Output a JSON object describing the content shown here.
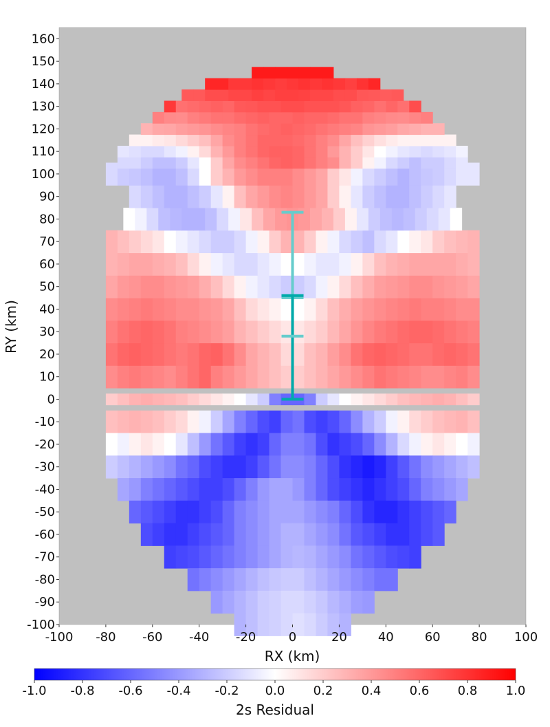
{
  "chart_data": {
    "type": "heatmap",
    "xlabel": "RX (km)",
    "ylabel": "RY (km)",
    "xlim": [
      -100,
      100
    ],
    "ylim": [
      -100,
      165
    ],
    "x_ticks": [
      -100,
      -80,
      -60,
      -40,
      -20,
      0,
      20,
      40,
      60,
      80,
      100
    ],
    "y_ticks": [
      -100,
      -90,
      -80,
      -70,
      -60,
      -50,
      -40,
      -30,
      -20,
      -10,
      0,
      10,
      20,
      30,
      40,
      50,
      60,
      70,
      80,
      90,
      100,
      110,
      120,
      130,
      140,
      150,
      160
    ],
    "cell_size_km": 5,
    "background_color": "#c0c0c0",
    "colorbar": {
      "label": "2s Residual",
      "range": [
        -1.0,
        1.0
      ],
      "ticks": [
        "-1.0",
        "-0.8",
        "-0.6",
        "-0.4",
        "-0.2",
        "0.0",
        "0.2",
        "0.4",
        "0.6",
        "0.8",
        "1.0"
      ],
      "low_color": "#0000ff",
      "mid_color": "#ffffff",
      "high_color": "#ff0000"
    },
    "value_rows": {
      "145": [
        0.9,
        0.9,
        0.9,
        0.9,
        0.9,
        0.9,
        0.9
      ],
      "140": [
        0.85,
        0.85,
        0.78,
        0.78,
        0.8,
        0.78,
        0.76,
        0.78,
        0.8,
        0.78,
        0.8,
        0.78,
        0.75,
        0.8,
        0.85
      ],
      "135": [
        0.65,
        0.65,
        0.7,
        0.7,
        0.72,
        0.72,
        0.75,
        0.73,
        0.75,
        0.75,
        0.74,
        0.72,
        0.72,
        0.7,
        0.7,
        0.66,
        0.65,
        0.64,
        0.65
      ],
      "130": [
        0.78,
        0.56,
        0.58,
        0.6,
        0.62,
        0.6,
        0.65,
        0.66,
        0.68,
        0.68,
        0.7,
        0.7,
        0.68,
        0.68,
        0.68,
        0.66,
        0.62,
        0.6,
        0.56,
        0.6,
        0.56,
        0.7
      ],
      "125": [
        0.5,
        0.46,
        0.45,
        0.5,
        0.52,
        0.55,
        0.55,
        0.58,
        0.6,
        0.62,
        0.6,
        0.6,
        0.62,
        0.6,
        0.6,
        0.58,
        0.55,
        0.55,
        0.5,
        0.48,
        0.46,
        0.45,
        0.48,
        0.5
      ],
      "120": [
        0.3,
        0.34,
        0.35,
        0.38,
        0.4,
        0.42,
        0.45,
        0.48,
        0.5,
        0.55,
        0.58,
        0.6,
        0.62,
        0.6,
        0.58,
        0.55,
        0.52,
        0.5,
        0.48,
        0.42,
        0.4,
        0.38,
        0.34,
        0.32,
        0.3,
        0.3
      ],
      "115": [
        0.05,
        0.05,
        0.08,
        0.1,
        0.15,
        0.2,
        0.25,
        0.35,
        0.45,
        0.5,
        0.55,
        0.6,
        0.6,
        0.6,
        0.58,
        0.55,
        0.5,
        0.45,
        0.35,
        0.25,
        0.18,
        0.12,
        0.08,
        0.05,
        0.05,
        0.05,
        0.05,
        0.05
      ],
      "110": [
        -0.1,
        -0.12,
        -0.15,
        -0.15,
        -0.1,
        -0.05,
        0.05,
        0.15,
        0.3,
        0.4,
        0.5,
        0.55,
        0.6,
        0.62,
        0.62,
        0.6,
        0.55,
        0.5,
        0.4,
        0.3,
        0.2,
        0.1,
        0.0,
        -0.05,
        -0.1,
        -0.12,
        -0.15,
        -0.12,
        -0.1,
        -0.05
      ],
      "105": [
        -0.15,
        -0.15,
        -0.2,
        -0.25,
        -0.25,
        -0.2,
        -0.1,
        0.0,
        0.2,
        0.35,
        0.45,
        0.5,
        0.55,
        0.6,
        0.62,
        0.6,
        0.55,
        0.5,
        0.45,
        0.3,
        0.2,
        0.05,
        -0.05,
        -0.15,
        -0.2,
        -0.25,
        -0.2,
        -0.2,
        -0.15,
        -0.1
      ],
      "100": [
        -0.15,
        -0.2,
        -0.22,
        -0.25,
        -0.3,
        -0.3,
        -0.25,
        -0.15,
        0.0,
        0.2,
        0.3,
        0.4,
        0.45,
        0.5,
        0.5,
        0.5,
        0.45,
        0.4,
        0.35,
        0.2,
        0.1,
        -0.05,
        -0.15,
        -0.2,
        -0.25,
        -0.3,
        -0.25,
        -0.22,
        -0.2,
        -0.15,
        -0.1,
        -0.1
      ],
      "90": [
        -0.15,
        -0.2,
        -0.25,
        -0.3,
        -0.3,
        -0.25,
        -0.2,
        -0.1,
        0.05,
        0.25,
        0.35,
        0.4,
        0.45,
        0.48,
        0.45,
        0.4,
        0.35,
        0.2,
        0.05,
        -0.1,
        -0.2,
        -0.25,
        -0.3,
        -0.3,
        -0.25,
        -0.2,
        -0.15,
        -0.1
      ],
      "80": [
        0.0,
        -0.05,
        -0.15,
        -0.25,
        -0.28,
        -0.3,
        -0.3,
        -0.25,
        -0.15,
        -0.05,
        0.1,
        0.25,
        0.35,
        0.4,
        0.42,
        0.4,
        0.35,
        0.3,
        0.2,
        0.05,
        -0.1,
        -0.2,
        -0.25,
        -0.28,
        -0.25,
        -0.2,
        -0.15,
        -0.1,
        0.0
      ],
      "70": [
        0.3,
        0.25,
        0.2,
        0.15,
        0.1,
        0.0,
        -0.05,
        -0.1,
        -0.15,
        -0.2,
        -0.2,
        -0.15,
        -0.05,
        0.05,
        0.2,
        0.3,
        0.3,
        0.2,
        0.05,
        -0.05,
        -0.15,
        -0.2,
        -0.25,
        -0.15,
        -0.1,
        0.0,
        0.05,
        0.1,
        0.2,
        0.25,
        0.28,
        0.3
      ],
      "60": [
        0.3,
        0.32,
        0.35,
        0.35,
        0.32,
        0.3,
        0.25,
        0.15,
        0.05,
        -0.05,
        -0.1,
        -0.15,
        -0.15,
        -0.1,
        -0.05,
        0.0,
        0.0,
        -0.05,
        -0.1,
        -0.1,
        -0.05,
        0.05,
        0.15,
        0.25,
        0.3,
        0.32,
        0.35,
        0.35,
        0.35,
        0.35,
        0.32,
        0.3
      ],
      "50": [
        0.35,
        0.4,
        0.42,
        0.45,
        0.45,
        0.42,
        0.4,
        0.38,
        0.32,
        0.25,
        0.15,
        0.05,
        -0.05,
        -0.1,
        -0.15,
        -0.2,
        -0.2,
        -0.15,
        -0.05,
        0.05,
        0.15,
        0.25,
        0.32,
        0.38,
        0.4,
        0.42,
        0.45,
        0.45,
        0.42,
        0.4,
        0.38,
        0.35
      ],
      "40": [
        0.45,
        0.48,
        0.5,
        0.52,
        0.5,
        0.48,
        0.45,
        0.45,
        0.42,
        0.4,
        0.35,
        0.25,
        0.15,
        0.1,
        0.05,
        0.0,
        0.0,
        0.05,
        0.15,
        0.25,
        0.32,
        0.38,
        0.42,
        0.45,
        0.48,
        0.5,
        0.52,
        0.5,
        0.5,
        0.48,
        0.45,
        0.45
      ],
      "30": [
        0.5,
        0.55,
        0.58,
        0.6,
        0.58,
        0.55,
        0.5,
        0.48,
        0.45,
        0.42,
        0.38,
        0.3,
        0.25,
        0.2,
        0.15,
        0.1,
        0.1,
        0.15,
        0.2,
        0.28,
        0.35,
        0.42,
        0.48,
        0.52,
        0.55,
        0.58,
        0.6,
        0.6,
        0.58,
        0.55,
        0.52,
        0.5
      ],
      "20": [
        0.55,
        0.6,
        0.62,
        0.6,
        0.58,
        0.55,
        0.52,
        0.55,
        0.6,
        0.62,
        0.55,
        0.45,
        0.35,
        0.3,
        0.25,
        0.15,
        0.15,
        0.25,
        0.3,
        0.38,
        0.45,
        0.55,
        0.6,
        0.62,
        0.6,
        0.58,
        0.55,
        0.55,
        0.58,
        0.6,
        0.58,
        0.55
      ],
      "10": [
        0.45,
        0.5,
        0.52,
        0.5,
        0.48,
        0.45,
        0.5,
        0.55,
        0.6,
        0.5,
        0.45,
        0.4,
        0.35,
        0.3,
        0.25,
        0.2,
        0.2,
        0.25,
        0.3,
        0.35,
        0.4,
        0.45,
        0.5,
        0.55,
        0.52,
        0.5,
        0.48,
        0.45,
        0.45,
        0.48,
        0.5,
        0.45
      ],
      "0": [
        0.2,
        0.25,
        0.3,
        0.32,
        0.3,
        0.28,
        0.25,
        0.2,
        0.15,
        0.1,
        0.05,
        0.0,
        -0.1,
        -0.2,
        -0.5,
        -0.6,
        -0.6,
        -0.5,
        -0.2,
        -0.1,
        0.0,
        0.05,
        0.1,
        0.15,
        0.2,
        0.25,
        0.28,
        0.3,
        0.32,
        0.3,
        0.25,
        0.2
      ],
      "-10": [
        0.25,
        0.28,
        0.3,
        0.28,
        0.25,
        0.2,
        0.15,
        0.05,
        -0.05,
        -0.2,
        -0.35,
        -0.5,
        -0.6,
        -0.7,
        -0.75,
        -0.6,
        -0.55,
        -0.7,
        -0.75,
        -0.7,
        -0.6,
        -0.45,
        -0.3,
        -0.2,
        -0.05,
        0.05,
        0.15,
        0.2,
        0.25,
        0.28,
        0.3,
        0.25
      ],
      "-20": [
        0.0,
        -0.05,
        0.05,
        0.1,
        0.05,
        0.0,
        -0.1,
        -0.25,
        -0.4,
        -0.55,
        -0.65,
        -0.75,
        -0.8,
        -0.75,
        -0.6,
        -0.5,
        -0.5,
        -0.55,
        -0.7,
        -0.8,
        -0.75,
        -0.7,
        -0.6,
        -0.45,
        -0.3,
        -0.15,
        -0.05,
        0.05,
        0.1,
        0.05,
        0.0,
        -0.05
      ],
      "-30": [
        -0.2,
        -0.25,
        -0.3,
        -0.35,
        -0.4,
        -0.45,
        -0.55,
        -0.6,
        -0.7,
        -0.75,
        -0.8,
        -0.8,
        -0.75,
        -0.65,
        -0.55,
        -0.45,
        -0.45,
        -0.5,
        -0.6,
        -0.7,
        -0.8,
        -0.85,
        -0.9,
        -0.85,
        -0.75,
        -0.65,
        -0.55,
        -0.45,
        -0.4,
        -0.35,
        -0.3,
        -0.25
      ],
      "-40": [
        -0.35,
        -0.4,
        -0.5,
        -0.55,
        -0.6,
        -0.65,
        -0.7,
        -0.75,
        -0.75,
        -0.7,
        -0.6,
        -0.5,
        -0.4,
        -0.35,
        -0.35,
        -0.4,
        -0.5,
        -0.6,
        -0.7,
        -0.75,
        -0.8,
        -0.85,
        -0.8,
        -0.75,
        -0.7,
        -0.6,
        -0.5,
        -0.45,
        -0.4,
        -0.35
      ],
      "-50": [
        -0.6,
        -0.65,
        -0.7,
        -0.75,
        -0.8,
        -0.8,
        -0.75,
        -0.7,
        -0.6,
        -0.5,
        -0.45,
        -0.4,
        -0.35,
        -0.35,
        -0.35,
        -0.4,
        -0.45,
        -0.5,
        -0.6,
        -0.7,
        -0.8,
        -0.85,
        -0.85,
        -0.8,
        -0.75,
        -0.7,
        -0.65,
        -0.6
      ],
      "-60": [
        -0.7,
        -0.75,
        -0.8,
        -0.8,
        -0.75,
        -0.7,
        -0.65,
        -0.6,
        -0.5,
        -0.45,
        -0.4,
        -0.35,
        -0.3,
        -0.3,
        -0.35,
        -0.4,
        -0.45,
        -0.55,
        -0.65,
        -0.7,
        -0.75,
        -0.8,
        -0.8,
        -0.75,
        -0.7,
        -0.65
      ],
      "-70": [
        -0.75,
        -0.72,
        -0.7,
        -0.65,
        -0.6,
        -0.55,
        -0.5,
        -0.45,
        -0.4,
        -0.35,
        -0.3,
        -0.28,
        -0.3,
        -0.35,
        -0.4,
        -0.45,
        -0.55,
        -0.6,
        -0.65,
        -0.7,
        -0.72,
        -0.75
      ],
      "-80": [
        -0.55,
        -0.5,
        -0.45,
        -0.4,
        -0.35,
        -0.3,
        -0.25,
        -0.22,
        -0.2,
        -0.2,
        -0.25,
        -0.3,
        -0.35,
        -0.4,
        -0.45,
        -0.5,
        -0.55,
        -0.55
      ],
      "-90": [
        -0.4,
        -0.35,
        -0.3,
        -0.25,
        -0.2,
        -0.18,
        -0.15,
        -0.15,
        -0.18,
        -0.22,
        -0.28,
        -0.32,
        -0.38,
        -0.4
      ],
      "-100": [
        -0.3,
        -0.25,
        -0.2,
        -0.18,
        -0.15,
        -0.12,
        -0.15,
        -0.2,
        -0.25,
        -0.3
      ]
    },
    "error_bars": [
      {
        "x": 0,
        "y_low": 45,
        "y_high": 83,
        "color": "#66cccc"
      },
      {
        "x": 0,
        "y_low": 0,
        "y_high": 46,
        "color": "#00aaaa"
      },
      {
        "x": 0,
        "y_low": 28,
        "y_high": 28,
        "color": "#66cccc"
      }
    ]
  }
}
